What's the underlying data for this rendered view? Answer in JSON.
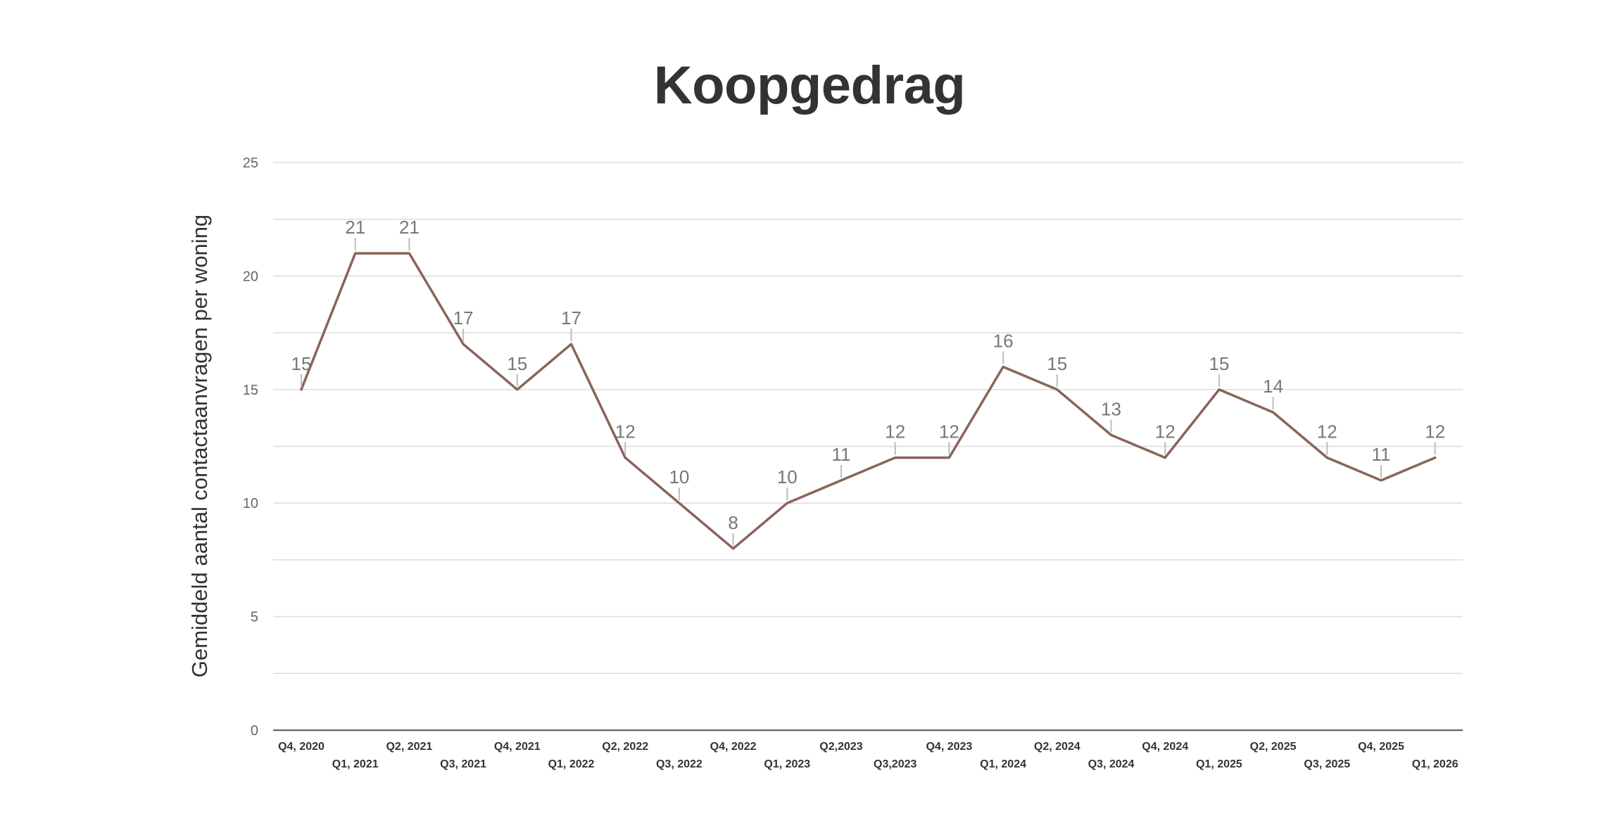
{
  "chart_data": {
    "type": "line",
    "title": "Koopgedrag",
    "ylabel": "Gemiddeld aantal contactaanvragen per woning",
    "xlabel": "",
    "ylim": [
      0,
      25
    ],
    "yticks": [
      "0",
      "5",
      "10",
      "15",
      "20",
      "25"
    ],
    "grid": true,
    "categories": [
      "Q4, 2020",
      "Q1, 2021",
      "Q2, 2021",
      "Q3, 2021",
      "Q4, 2021",
      "Q1, 2022",
      "Q2, 2022",
      "Q3, 2022",
      "Q4, 2022",
      "Q1, 2023",
      "Q2,2023",
      "Q3,2023",
      "Q4, 2023",
      "Q1, 2024",
      "Q2, 2024",
      "Q3, 2024",
      "Q4, 2024",
      "Q1, 2025",
      "Q2, 2025",
      "Q3, 2025",
      "Q4, 2025",
      "Q1, 2026"
    ],
    "series": [
      {
        "values": [
          15,
          21,
          21,
          17,
          15,
          17,
          12,
          10,
          8,
          10,
          11,
          12,
          12,
          16,
          15,
          13,
          12,
          15,
          14,
          12,
          11,
          12
        ],
        "color": "#8a6459"
      }
    ]
  }
}
